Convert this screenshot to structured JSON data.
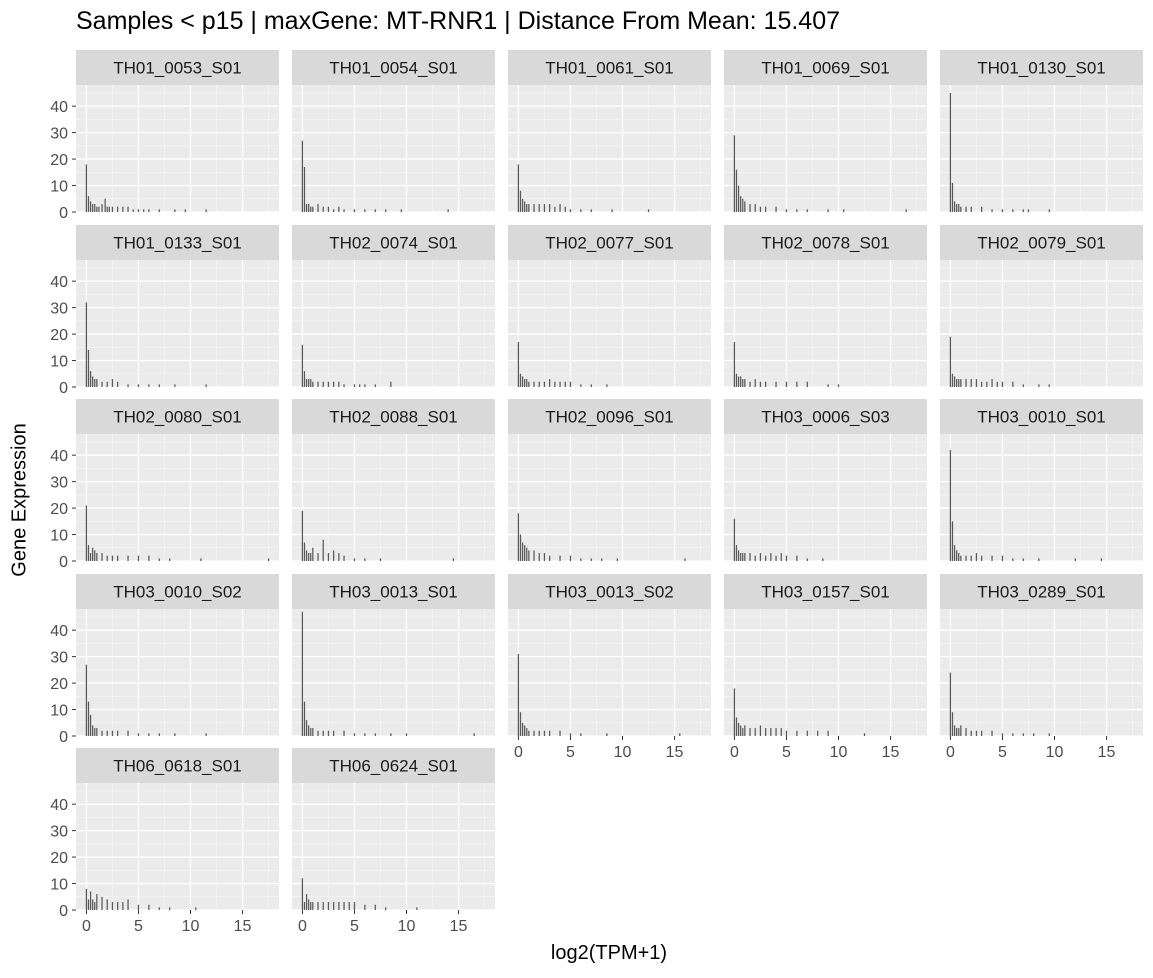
{
  "chart_data": {
    "type": "bar",
    "title": "Samples < p15 | maxGene: MT-RNR1 | Distance From Mean: 15.407",
    "xlabel": "log2(TPM+1)",
    "ylabel": "Gene Expression",
    "xlim": [
      -1,
      18.5
    ],
    "ylim": [
      0,
      48
    ],
    "x_ticks": [
      0,
      5,
      10,
      15
    ],
    "y_ticks": [
      0,
      10,
      20,
      30,
      40
    ],
    "grid": true,
    "bar_color": "#595959",
    "panel_background": "#ebebeb",
    "strip_background": "#d9d9d9",
    "panels": [
      {
        "name": "TH01_0053_S01",
        "x": [
          0,
          0.2,
          0.4,
          0.6,
          0.8,
          1.0,
          1.2,
          1.5,
          1.8,
          2.0,
          2.2,
          2.5,
          3.0,
          3.5,
          4.0,
          4.5,
          5.0,
          5.5,
          6.0,
          7.0,
          8.5,
          9.5,
          11.5
        ],
        "y": [
          18,
          6,
          4,
          3,
          3,
          2,
          2,
          3,
          5,
          2,
          2,
          2,
          2,
          2,
          2,
          1,
          1,
          1,
          1,
          1,
          1,
          1,
          1
        ]
      },
      {
        "name": "TH01_0054_S01",
        "x": [
          0,
          0.2,
          0.4,
          0.6,
          0.8,
          1.0,
          1.5,
          2.0,
          2.5,
          3.0,
          3.5,
          4.0,
          5.0,
          6.0,
          7.0,
          8.0,
          9.5,
          14.0
        ],
        "y": [
          27,
          17,
          3,
          3,
          2,
          2,
          3,
          2,
          2,
          1,
          2,
          1,
          1,
          1,
          1,
          1,
          1,
          1
        ]
      },
      {
        "name": "TH01_0061_S01",
        "x": [
          0,
          0.2,
          0.4,
          0.6,
          0.8,
          1.0,
          1.5,
          2.0,
          2.5,
          3.0,
          3.5,
          4.0,
          4.5,
          5.0,
          6.0,
          7.0,
          9.0,
          12.5
        ],
        "y": [
          18,
          8,
          5,
          4,
          3,
          3,
          3,
          3,
          3,
          3,
          2,
          3,
          2,
          1,
          1,
          1,
          1,
          1
        ]
      },
      {
        "name": "TH01_0069_S01",
        "x": [
          0,
          0.2,
          0.4,
          0.6,
          0.8,
          1.0,
          1.5,
          2.0,
          2.5,
          3.0,
          4.0,
          5.0,
          6.0,
          7.0,
          9.0,
          10.5,
          16.5
        ],
        "y": [
          29,
          16,
          10,
          6,
          5,
          4,
          3,
          3,
          2,
          2,
          2,
          1,
          1,
          1,
          1,
          1,
          1
        ]
      },
      {
        "name": "TH01_0130_S01",
        "x": [
          0,
          0.2,
          0.4,
          0.6,
          0.8,
          1.0,
          1.5,
          2.0,
          3.0,
          4.0,
          5.0,
          6.0,
          7.0,
          7.5,
          9.5
        ],
        "y": [
          45,
          11,
          4,
          3,
          3,
          2,
          2,
          2,
          2,
          1,
          1,
          1,
          1,
          1,
          1
        ]
      },
      {
        "name": "TH01_0133_S01",
        "x": [
          0,
          0.2,
          0.4,
          0.6,
          0.8,
          1.0,
          1.5,
          2.0,
          2.5,
          3.0,
          4.0,
          5.0,
          6.0,
          7.0,
          8.5,
          11.5
        ],
        "y": [
          32,
          14,
          6,
          4,
          3,
          3,
          2,
          2,
          3,
          2,
          1,
          1,
          1,
          1,
          1,
          1
        ]
      },
      {
        "name": "TH02_0074_S01",
        "x": [
          0,
          0.2,
          0.4,
          0.6,
          0.8,
          1.0,
          1.5,
          2.0,
          2.5,
          3.0,
          3.5,
          4.0,
          5.0,
          5.5,
          6.0,
          7.0,
          8.5
        ],
        "y": [
          16,
          6,
          3,
          3,
          3,
          2,
          2,
          2,
          2,
          2,
          2,
          1,
          1,
          1,
          1,
          1,
          2
        ]
      },
      {
        "name": "TH02_0077_S01",
        "x": [
          0,
          0.2,
          0.4,
          0.6,
          0.8,
          1.0,
          1.5,
          2.0,
          2.5,
          3.0,
          3.5,
          4.0,
          4.5,
          5.0,
          6.0,
          7.0,
          8.5
        ],
        "y": [
          17,
          5,
          4,
          3,
          3,
          2,
          2,
          2,
          2,
          3,
          2,
          2,
          2,
          2,
          1,
          1,
          1
        ]
      },
      {
        "name": "TH02_0078_S01",
        "x": [
          0,
          0.2,
          0.4,
          0.6,
          0.8,
          1.0,
          1.5,
          2.0,
          2.5,
          3.0,
          4.0,
          5.0,
          6.0,
          7.0,
          9.0,
          10.0
        ],
        "y": [
          17,
          5,
          4,
          4,
          3,
          3,
          2,
          3,
          2,
          2,
          2,
          2,
          2,
          2,
          1,
          1
        ]
      },
      {
        "name": "TH02_0079_S01",
        "x": [
          0,
          0.2,
          0.4,
          0.6,
          0.8,
          1.0,
          1.5,
          2.0,
          2.5,
          3.0,
          3.5,
          4.0,
          4.5,
          5.0,
          6.0,
          7.0,
          8.5,
          9.5
        ],
        "y": [
          19,
          5,
          4,
          3,
          3,
          3,
          3,
          3,
          3,
          2,
          2,
          3,
          2,
          2,
          2,
          1,
          1,
          1
        ]
      },
      {
        "name": "TH02_0080_S01",
        "x": [
          0,
          0.2,
          0.4,
          0.6,
          0.8,
          1.0,
          1.5,
          2.0,
          2.5,
          3.0,
          4.0,
          5.0,
          6.0,
          7.0,
          8.0,
          11.0,
          17.5
        ],
        "y": [
          21,
          6,
          3,
          5,
          4,
          3,
          3,
          2,
          2,
          2,
          2,
          2,
          2,
          1,
          1,
          1,
          1
        ]
      },
      {
        "name": "TH02_0088_S01",
        "x": [
          0,
          0.2,
          0.4,
          0.6,
          0.8,
          1.0,
          1.5,
          2.0,
          2.5,
          3.0,
          3.5,
          4.0,
          5.0,
          6.0,
          7.5,
          14.5
        ],
        "y": [
          19,
          7,
          4,
          3,
          3,
          5,
          3,
          8,
          3,
          4,
          3,
          2,
          1,
          1,
          1,
          1
        ]
      },
      {
        "name": "TH02_0096_S01",
        "x": [
          0,
          0.2,
          0.4,
          0.6,
          0.8,
          1.0,
          1.5,
          2.0,
          2.5,
          3.0,
          4.0,
          5.0,
          6.0,
          7.0,
          8.0,
          9.5,
          16.0
        ],
        "y": [
          18,
          10,
          7,
          6,
          5,
          4,
          4,
          3,
          3,
          2,
          2,
          2,
          1,
          1,
          1,
          1,
          1
        ]
      },
      {
        "name": "TH03_0006_S03",
        "x": [
          0,
          0.2,
          0.4,
          0.6,
          0.8,
          1.0,
          1.5,
          2.0,
          2.5,
          3.0,
          3.5,
          4.0,
          4.5,
          5.0,
          6.0,
          7.0,
          8.5
        ],
        "y": [
          16,
          6,
          4,
          3,
          3,
          3,
          3,
          2,
          3,
          2,
          3,
          2,
          3,
          2,
          2,
          1,
          1
        ]
      },
      {
        "name": "TH03_0010_S01",
        "x": [
          0,
          0.2,
          0.4,
          0.6,
          0.8,
          1.0,
          1.5,
          2.0,
          2.5,
          3.0,
          4.0,
          5.0,
          6.0,
          7.0,
          8.5,
          12.0,
          14.5
        ],
        "y": [
          42,
          15,
          6,
          4,
          3,
          2,
          2,
          2,
          3,
          2,
          2,
          2,
          1,
          1,
          1,
          1,
          1
        ]
      },
      {
        "name": "TH03_0010_S02",
        "x": [
          0,
          0.2,
          0.4,
          0.6,
          0.8,
          1.0,
          1.5,
          2.0,
          2.5,
          3.0,
          4.0,
          5.0,
          6.0,
          7.0,
          8.5,
          11.5
        ],
        "y": [
          27,
          13,
          8,
          4,
          3,
          3,
          2,
          2,
          2,
          2,
          2,
          1,
          1,
          1,
          1,
          1
        ]
      },
      {
        "name": "TH03_0013_S01",
        "x": [
          0,
          0.2,
          0.4,
          0.6,
          0.8,
          1.0,
          1.5,
          2.0,
          2.5,
          3.0,
          4.0,
          5.0,
          6.0,
          7.0,
          8.5,
          10.0,
          16.5
        ],
        "y": [
          47,
          13,
          6,
          4,
          3,
          3,
          2,
          2,
          2,
          2,
          2,
          1,
          1,
          1,
          1,
          1,
          1
        ]
      },
      {
        "name": "TH03_0013_S02",
        "x": [
          0,
          0.2,
          0.4,
          0.6,
          0.8,
          1.0,
          1.5,
          2.0,
          2.5,
          3.0,
          4.0,
          5.0,
          6.0,
          8.5,
          15.5
        ],
        "y": [
          31,
          9,
          5,
          4,
          3,
          2,
          2,
          2,
          2,
          2,
          2,
          1,
          1,
          1,
          1
        ]
      },
      {
        "name": "TH03_0157_S01",
        "x": [
          0,
          0.2,
          0.4,
          0.6,
          0.8,
          1.0,
          1.5,
          2.0,
          2.5,
          3.0,
          3.5,
          4.0,
          4.5,
          5.0,
          6.0,
          7.0,
          8.0,
          9.0,
          12.5
        ],
        "y": [
          18,
          7,
          5,
          4,
          3,
          4,
          3,
          3,
          4,
          3,
          3,
          3,
          3,
          2,
          2,
          2,
          2,
          2,
          1
        ]
      },
      {
        "name": "TH03_0289_S01",
        "x": [
          0,
          0.2,
          0.4,
          0.6,
          0.8,
          1.0,
          1.5,
          2.0,
          2.5,
          3.0,
          4.0,
          5.0,
          6.0,
          7.0,
          8.0,
          9.5
        ],
        "y": [
          24,
          9,
          4,
          3,
          3,
          4,
          3,
          2,
          2,
          2,
          2,
          1,
          1,
          1,
          1,
          1
        ]
      },
      {
        "name": "TH06_0618_S01",
        "x": [
          0,
          0.2,
          0.4,
          0.6,
          0.8,
          1.0,
          1.5,
          2.0,
          2.5,
          3.0,
          3.5,
          4.0,
          5.0,
          6.0,
          7.0,
          8.0,
          10.5
        ],
        "y": [
          8,
          4,
          7,
          4,
          3,
          6,
          5,
          4,
          3,
          3,
          3,
          4,
          2,
          2,
          1,
          1,
          1
        ]
      },
      {
        "name": "TH06_0624_S01",
        "x": [
          0,
          0.2,
          0.4,
          0.6,
          0.8,
          1.0,
          1.5,
          2.0,
          2.5,
          3.0,
          3.5,
          4.0,
          4.5,
          5.0,
          6.0,
          7.0,
          8.0,
          11.0
        ],
        "y": [
          12,
          3,
          6,
          4,
          3,
          3,
          3,
          3,
          3,
          3,
          3,
          3,
          3,
          3,
          2,
          2,
          1,
          1
        ]
      }
    ]
  }
}
